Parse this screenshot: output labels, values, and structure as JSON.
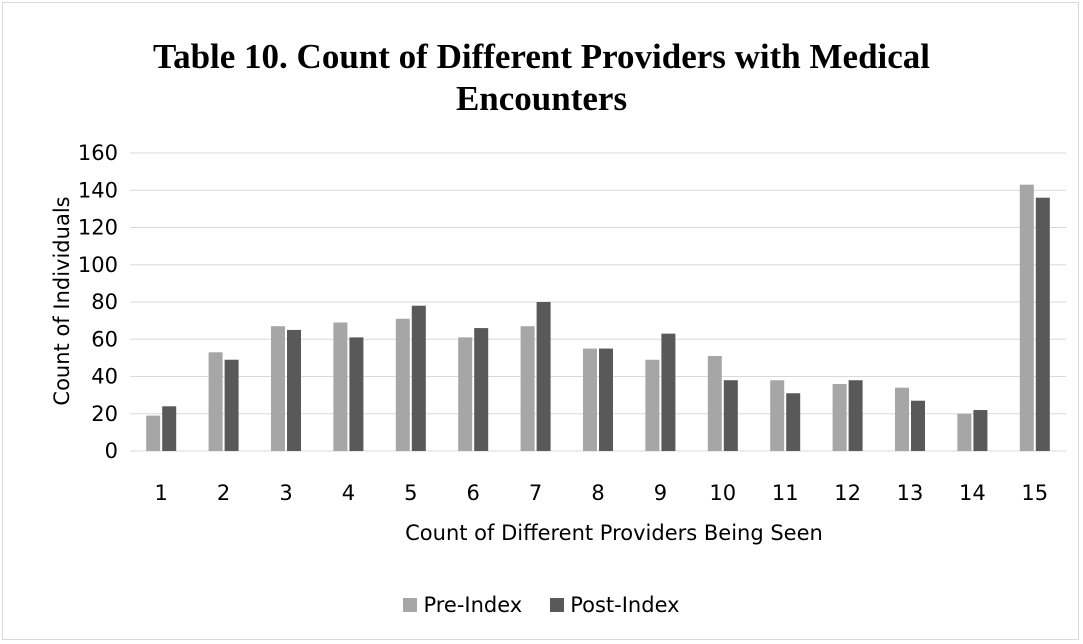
{
  "chart_data": {
    "type": "bar",
    "title": "Table 10. Count of Different Providers with Medical Encounters",
    "title_lines": [
      "Table 10. Count of Different Providers with Medical",
      "Encounters"
    ],
    "xlabel": "Count of Different Providers Being Seen",
    "ylabel": "Count of Individuals",
    "categories": [
      "1",
      "2",
      "3",
      "4",
      "5",
      "6",
      "7",
      "8",
      "9",
      "10",
      "11",
      "12",
      "13",
      "14",
      "15"
    ],
    "series": [
      {
        "name": "Pre-Index",
        "color": "#a6a6a6",
        "values": [
          19,
          53,
          67,
          69,
          71,
          61,
          67,
          55,
          49,
          51,
          38,
          36,
          34,
          20,
          143
        ]
      },
      {
        "name": "Post-Index",
        "color": "#595959",
        "values": [
          24,
          49,
          65,
          61,
          78,
          66,
          80,
          55,
          63,
          38,
          31,
          38,
          27,
          22,
          136
        ]
      }
    ],
    "ylim": [
      0,
      160
    ],
    "yticks": [
      0,
      20,
      40,
      60,
      80,
      100,
      120,
      140,
      160
    ],
    "grid": true,
    "legend_position": "bottom"
  }
}
